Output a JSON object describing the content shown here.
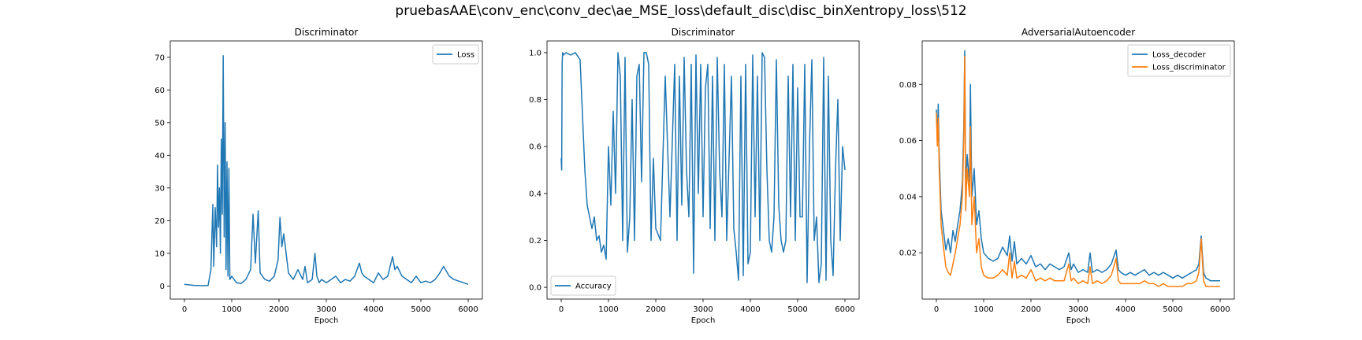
{
  "figure": {
    "title": "pruebasAAE\\conv_enc\\conv_dec\\ae_MSE_loss\\default_disc\\disc_binXentropy_loss\\512"
  },
  "colors": {
    "blue": "#1f77b4",
    "orange": "#ff7f0e"
  },
  "chart_data": [
    {
      "type": "line",
      "title": "Discriminator",
      "xlabel": "Epoch",
      "ylabel": "",
      "xlim": [
        -300,
        6300
      ],
      "ylim": [
        -4,
        75
      ],
      "xticks": [
        0,
        1000,
        2000,
        3000,
        4000,
        5000,
        6000
      ],
      "yticks": [
        0,
        10,
        20,
        30,
        40,
        50,
        60,
        70
      ],
      "grid": false,
      "legend": "top-right",
      "series": [
        {
          "name": "Loss",
          "color": "#1f77b4",
          "x": [
            0,
            200,
            400,
            500,
            560,
            600,
            620,
            650,
            680,
            700,
            720,
            740,
            760,
            780,
            800,
            820,
            840,
            860,
            880,
            900,
            920,
            940,
            960,
            1000,
            1100,
            1200,
            1300,
            1400,
            1450,
            1500,
            1530,
            1560,
            1600,
            1650,
            1700,
            1800,
            1900,
            1980,
            2020,
            2060,
            2100,
            2200,
            2300,
            2400,
            2500,
            2550,
            2600,
            2700,
            2760,
            2800,
            2850,
            2900,
            3000,
            3100,
            3200,
            3250,
            3300,
            3400,
            3500,
            3600,
            3700,
            3750,
            3800,
            3900,
            4000,
            4100,
            4200,
            4300,
            4400,
            4450,
            4500,
            4600,
            4700,
            4800,
            4900,
            5000,
            5100,
            5200,
            5300,
            5400,
            5480,
            5520,
            5600,
            5700,
            5800,
            5900,
            6000
          ],
          "values": [
            0.5,
            0.2,
            0.1,
            0.2,
            5,
            25,
            6,
            24,
            12,
            37,
            18,
            30,
            10,
            45,
            22,
            70.5,
            15,
            50,
            5,
            38,
            3,
            36,
            2,
            3,
            1,
            0.8,
            2,
            5,
            22,
            7,
            15,
            23,
            4,
            3,
            2,
            1.5,
            3,
            8,
            21,
            12,
            16,
            4,
            2,
            5,
            2,
            6,
            1,
            2,
            10,
            3,
            1,
            2,
            1,
            2,
            3,
            2,
            1,
            2,
            1.5,
            3,
            7,
            4,
            3,
            2,
            1,
            4,
            2,
            3,
            9,
            5,
            6,
            3,
            2,
            1,
            3,
            1,
            1.5,
            1,
            2,
            4,
            6,
            5,
            3,
            2,
            1.5,
            1,
            0.5
          ]
        }
      ]
    },
    {
      "type": "line",
      "title": "Discriminator",
      "xlabel": "Epoch",
      "ylabel": "",
      "xlim": [
        -300,
        6300
      ],
      "ylim": [
        -0.05,
        1.05
      ],
      "xticks": [
        0,
        1000,
        2000,
        3000,
        4000,
        5000,
        6000
      ],
      "yticks": [
        0.0,
        0.2,
        0.4,
        0.6,
        0.8,
        1.0
      ],
      "grid": false,
      "legend": "bottom-left",
      "series": [
        {
          "name": "Accuracy",
          "color": "#1f77b4",
          "x": [
            0,
            10,
            20,
            30,
            50,
            100,
            200,
            300,
            400,
            500,
            550,
            600,
            650,
            700,
            750,
            800,
            850,
            900,
            950,
            1000,
            1050,
            1100,
            1150,
            1200,
            1250,
            1300,
            1350,
            1400,
            1450,
            1500,
            1550,
            1600,
            1650,
            1700,
            1750,
            1800,
            1850,
            1900,
            1950,
            2000,
            2100,
            2200,
            2300,
            2400,
            2450,
            2500,
            2550,
            2600,
            2650,
            2700,
            2750,
            2800,
            2850,
            2900,
            2950,
            3000,
            3050,
            3100,
            3150,
            3200,
            3250,
            3300,
            3350,
            3400,
            3450,
            3500,
            3550,
            3600,
            3650,
            3700,
            3750,
            3800,
            3850,
            3900,
            3950,
            4000,
            4050,
            4100,
            4150,
            4200,
            4250,
            4300,
            4350,
            4400,
            4450,
            4500,
            4550,
            4600,
            4650,
            4700,
            4750,
            4800,
            4850,
            4900,
            4950,
            5000,
            5050,
            5100,
            5150,
            5200,
            5250,
            5300,
            5350,
            5400,
            5450,
            5500,
            5550,
            5600,
            5650,
            5700,
            5750,
            5800,
            5850,
            5900,
            5950,
            6000
          ],
          "values": [
            0.55,
            0.5,
            0.95,
            1.0,
            0.99,
            1.0,
            0.99,
            1.0,
            0.97,
            0.5,
            0.35,
            0.3,
            0.25,
            0.3,
            0.2,
            0.22,
            0.15,
            0.18,
            0.12,
            0.6,
            0.35,
            0.75,
            0.4,
            1.0,
            0.9,
            0.2,
            0.98,
            0.15,
            0.3,
            0.8,
            0.2,
            0.9,
            0.95,
            0.45,
            1.0,
            1.0,
            0.95,
            0.2,
            0.55,
            0.25,
            0.2,
            0.9,
            0.3,
            0.95,
            0.2,
            0.9,
            0.35,
            0.98,
            0.5,
            0.3,
            0.95,
            0.06,
            0.99,
            0.4,
            0.95,
            0.3,
            0.85,
            0.95,
            0.25,
            0.9,
            0.2,
            0.98,
            0.5,
            0.3,
            0.95,
            0.2,
            0.55,
            0.9,
            0.25,
            0.15,
            0.03,
            0.9,
            0.05,
            0.95,
            0.1,
            0.15,
            0.99,
            0.3,
            0.9,
            0.2,
            1.0,
            0.98,
            0.5,
            0.2,
            0.15,
            0.3,
            0.97,
            0.35,
            0.2,
            0.15,
            0.2,
            0.9,
            0.3,
            0.95,
            0.2,
            0.85,
            0.3,
            0.3,
            0.95,
            0.02,
            0.6,
            0.97,
            0.2,
            0.3,
            0.02,
            0.1,
            0.98,
            0.03,
            0.9,
            0.2,
            0.05,
            0.5,
            0.8,
            0.2,
            0.6,
            0.5
          ]
        }
      ]
    },
    {
      "type": "line",
      "title": "AdversarialAutoencoder",
      "xlabel": "Epoch",
      "ylabel": "",
      "xlim": [
        -300,
        6300
      ],
      "ylim": [
        0.0035,
        0.0955
      ],
      "xticks": [
        0,
        1000,
        2000,
        3000,
        4000,
        5000,
        6000
      ],
      "yticks": [
        0.02,
        0.04,
        0.06,
        0.08
      ],
      "grid": false,
      "legend": "top-right",
      "series": [
        {
          "name": "Loss_decoder",
          "color": "#1f77b4",
          "x": [
            0,
            20,
            40,
            60,
            80,
            100,
            150,
            200,
            250,
            300,
            350,
            400,
            450,
            500,
            550,
            580,
            600,
            620,
            650,
            700,
            720,
            750,
            800,
            850,
            900,
            950,
            1000,
            1100,
            1200,
            1300,
            1400,
            1500,
            1550,
            1600,
            1650,
            1700,
            1800,
            1900,
            2000,
            2100,
            2200,
            2300,
            2400,
            2500,
            2600,
            2700,
            2800,
            2850,
            2900,
            3000,
            3100,
            3200,
            3250,
            3300,
            3400,
            3500,
            3600,
            3700,
            3800,
            3850,
            3900,
            4000,
            4100,
            4200,
            4300,
            4400,
            4500,
            4600,
            4700,
            4800,
            4900,
            5000,
            5100,
            5200,
            5300,
            5400,
            5500,
            5550,
            5600,
            5650,
            5700,
            5800,
            5900,
            6000
          ],
          "values": [
            0.071,
            0.06,
            0.073,
            0.055,
            0.045,
            0.035,
            0.028,
            0.021,
            0.025,
            0.02,
            0.028,
            0.024,
            0.03,
            0.035,
            0.045,
            0.065,
            0.092,
            0.04,
            0.055,
            0.045,
            0.08,
            0.04,
            0.05,
            0.03,
            0.035,
            0.025,
            0.02,
            0.018,
            0.017,
            0.018,
            0.022,
            0.019,
            0.026,
            0.017,
            0.024,
            0.016,
            0.018,
            0.016,
            0.019,
            0.015,
            0.016,
            0.014,
            0.016,
            0.015,
            0.014,
            0.015,
            0.02,
            0.014,
            0.016,
            0.013,
            0.014,
            0.013,
            0.02,
            0.013,
            0.014,
            0.013,
            0.014,
            0.016,
            0.021,
            0.014,
            0.013,
            0.012,
            0.013,
            0.012,
            0.013,
            0.014,
            0.012,
            0.013,
            0.012,
            0.013,
            0.012,
            0.011,
            0.012,
            0.011,
            0.012,
            0.013,
            0.014,
            0.016,
            0.026,
            0.013,
            0.011,
            0.01,
            0.01,
            0.01
          ]
        },
        {
          "name": "Loss_discriminator",
          "color": "#ff7f0e",
          "x": [
            0,
            20,
            40,
            60,
            80,
            100,
            150,
            200,
            250,
            300,
            350,
            400,
            450,
            500,
            550,
            580,
            600,
            620,
            650,
            700,
            720,
            750,
            800,
            850,
            900,
            950,
            1000,
            1100,
            1200,
            1300,
            1400,
            1500,
            1550,
            1600,
            1650,
            1700,
            1800,
            1900,
            2000,
            2100,
            2200,
            2300,
            2400,
            2500,
            2600,
            2700,
            2800,
            2850,
            2900,
            3000,
            3100,
            3200,
            3250,
            3300,
            3400,
            3500,
            3600,
            3700,
            3800,
            3850,
            3900,
            4000,
            4100,
            4200,
            4300,
            4400,
            4500,
            4600,
            4700,
            4800,
            4900,
            5000,
            5100,
            5200,
            5300,
            5400,
            5500,
            5550,
            5600,
            5650,
            5700,
            5800,
            5900,
            6000
          ],
          "values": [
            0.07,
            0.058,
            0.068,
            0.05,
            0.04,
            0.03,
            0.022,
            0.015,
            0.013,
            0.012,
            0.016,
            0.02,
            0.025,
            0.03,
            0.04,
            0.06,
            0.09,
            0.035,
            0.05,
            0.04,
            0.065,
            0.03,
            0.04,
            0.02,
            0.025,
            0.015,
            0.012,
            0.011,
            0.011,
            0.012,
            0.014,
            0.012,
            0.02,
            0.011,
            0.017,
            0.011,
            0.012,
            0.011,
            0.014,
            0.01,
            0.011,
            0.01,
            0.011,
            0.01,
            0.01,
            0.01,
            0.016,
            0.01,
            0.011,
            0.009,
            0.01,
            0.009,
            0.015,
            0.009,
            0.01,
            0.009,
            0.01,
            0.012,
            0.018,
            0.01,
            0.009,
            0.009,
            0.009,
            0.009,
            0.009,
            0.01,
            0.009,
            0.009,
            0.008,
            0.009,
            0.008,
            0.008,
            0.008,
            0.008,
            0.009,
            0.009,
            0.01,
            0.013,
            0.025,
            0.01,
            0.008,
            0.008,
            0.008,
            0.008
          ]
        }
      ]
    }
  ]
}
